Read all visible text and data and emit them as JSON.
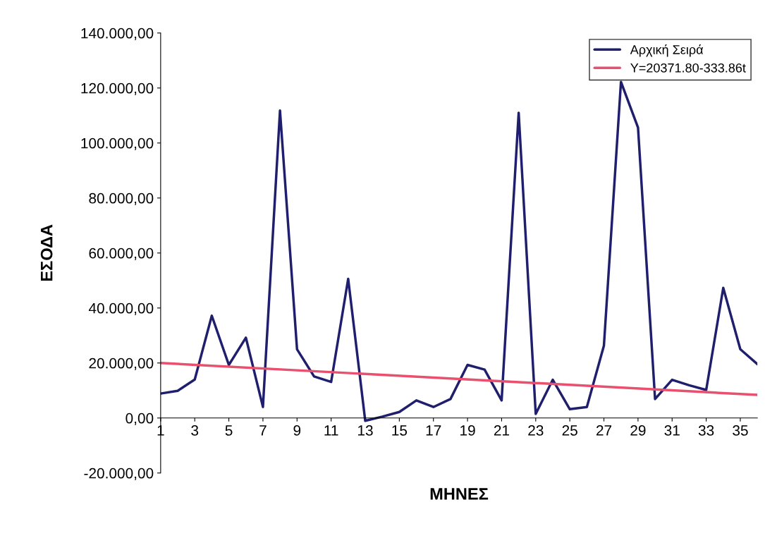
{
  "chart_data": {
    "type": "line",
    "xlabel": "ΜΗΝΕΣ",
    "ylabel": "ΕΣΟΔΑ",
    "x": [
      1,
      2,
      3,
      4,
      5,
      6,
      7,
      8,
      9,
      10,
      11,
      12,
      13,
      14,
      15,
      16,
      17,
      18,
      19,
      20,
      21,
      22,
      23,
      24,
      25,
      26,
      27,
      28,
      29,
      30,
      31,
      32,
      33,
      34,
      35,
      36
    ],
    "series": [
      {
        "name": "Αρχική Σειρά",
        "color": "#1f1f6e",
        "values": [
          8900,
          9900,
          14000,
          37200,
          19300,
          29200,
          4000,
          111800,
          25000,
          15100,
          13100,
          50600,
          -1000,
          500,
          2200,
          6400,
          4000,
          6900,
          19300,
          17600,
          6400,
          111000,
          1500,
          13900,
          3200,
          4000,
          26300,
          122200,
          105600,
          6900,
          13900,
          11900,
          10200,
          47300,
          25000,
          19600
        ]
      },
      {
        "name": "Y=20371.80-333.86t",
        "color": "#e8506e",
        "x": [
          1,
          36
        ],
        "values": [
          20000,
          8400
        ]
      }
    ],
    "xlim": [
      1,
      36
    ],
    "xticks": [
      1,
      3,
      5,
      7,
      9,
      11,
      13,
      15,
      17,
      19,
      21,
      23,
      25,
      27,
      29,
      31,
      33,
      35
    ],
    "ylim": [
      -20000,
      140000
    ],
    "yticks": [
      {
        "value": -20000,
        "label": "-20.000,00"
      },
      {
        "value": 0,
        "label": "0,00"
      },
      {
        "value": 20000,
        "label": "20.000,00"
      },
      {
        "value": 40000,
        "label": "40.000,00"
      },
      {
        "value": 60000,
        "label": "60.000,00"
      },
      {
        "value": 80000,
        "label": "80.000,00"
      },
      {
        "value": 100000,
        "label": "100.000,00"
      },
      {
        "value": 120000,
        "label": "120.000,00"
      },
      {
        "value": 140000,
        "label": "140.000,00"
      }
    ],
    "grid": false,
    "legend": "top right",
    "marker": "none",
    "line_style": "solid"
  }
}
